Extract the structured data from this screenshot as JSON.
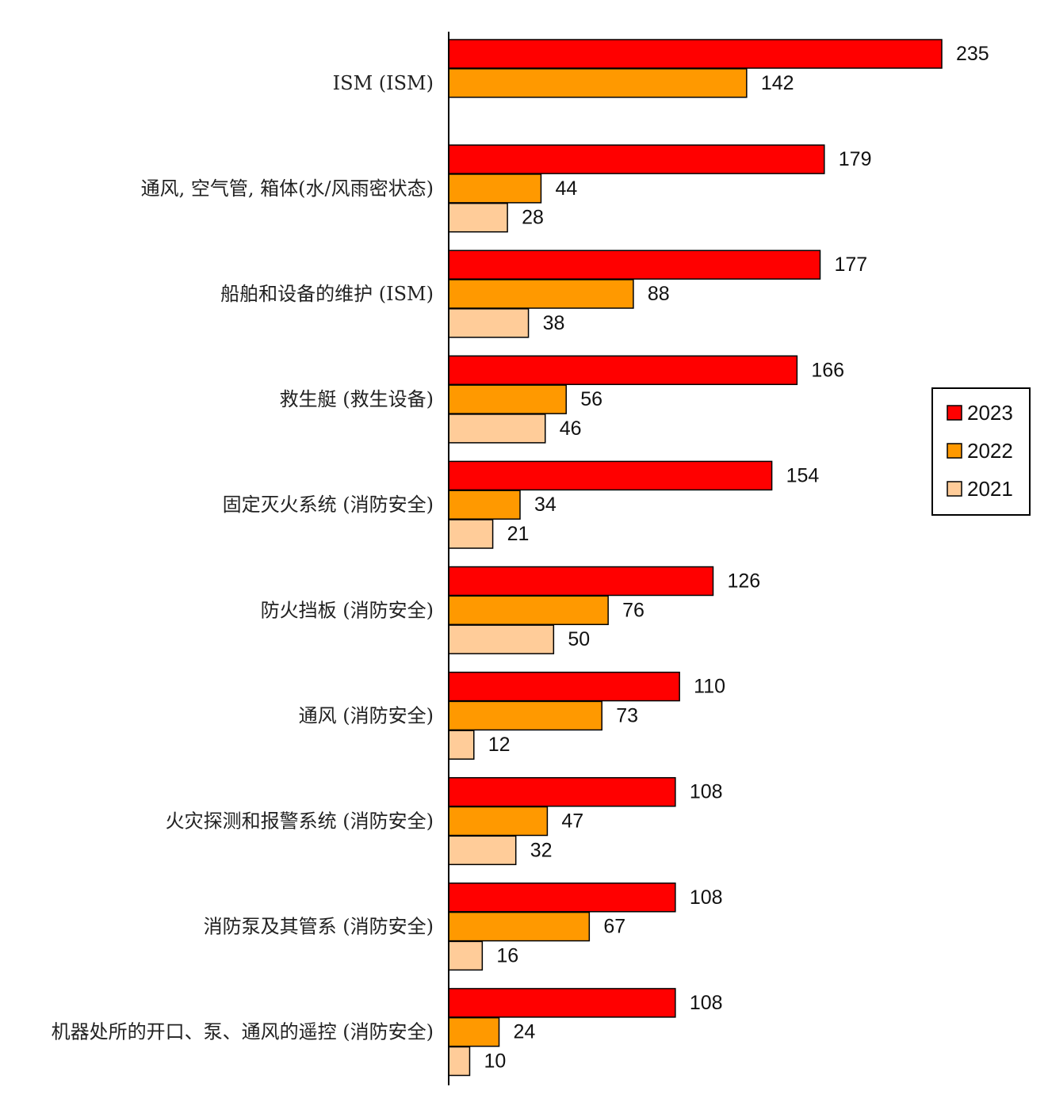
{
  "chart_data": {
    "type": "bar",
    "orientation": "horizontal",
    "title": "",
    "xlabel": "",
    "ylabel": "",
    "xlim": [
      0,
      235
    ],
    "grid": false,
    "legend_position": "right",
    "categories": [
      "ISM (ISM)",
      "通风, 空气管, 箱体(水/风雨密状态)",
      "船舶和设备的维护 (ISM)",
      "救生艇 (救生设备)",
      "固定灭火系统 (消防安全)",
      "防火挡板 (消防安全)",
      "通风 (消防安全)",
      "火灾探测和报警系统 (消防安全)",
      "消防泵及其管系 (消防安全)",
      "机器处所的开口、泵、通风的遥控 (消防安全)"
    ],
    "series": [
      {
        "name": "2023",
        "color": "#ff0000",
        "values": [
          235,
          179,
          177,
          166,
          154,
          126,
          110,
          108,
          108,
          108
        ]
      },
      {
        "name": "2022",
        "color": "#ff9900",
        "values": [
          142,
          44,
          88,
          56,
          34,
          76,
          73,
          47,
          67,
          24
        ]
      },
      {
        "name": "2021",
        "color": "#ffcc99",
        "values": [
          null,
          28,
          38,
          46,
          21,
          50,
          12,
          32,
          16,
          10
        ]
      }
    ]
  }
}
